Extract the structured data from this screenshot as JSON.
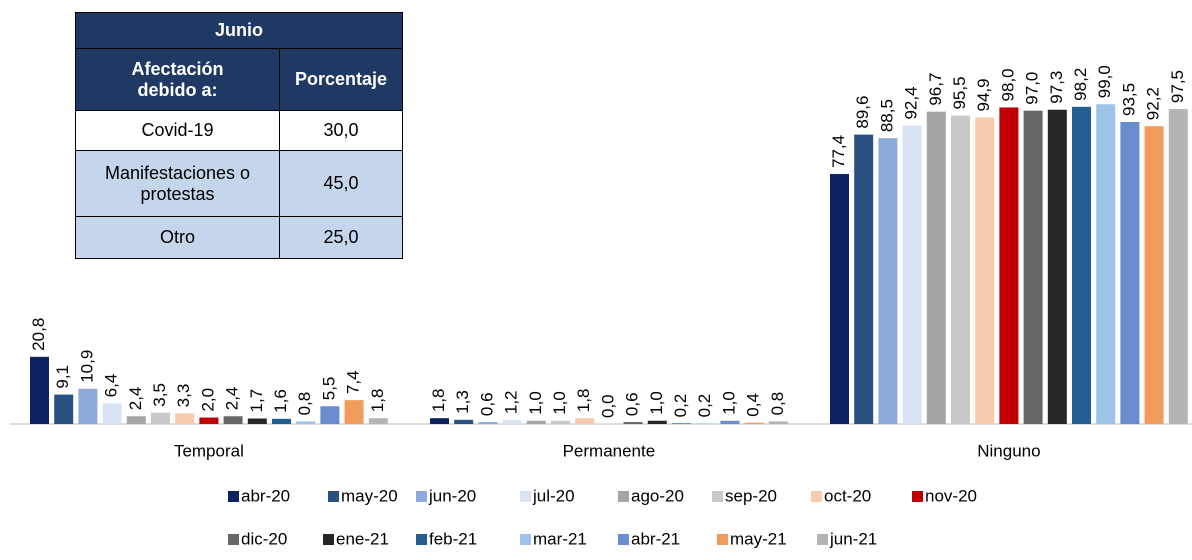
{
  "chart_data": {
    "type": "bar",
    "categories": [
      "Temporal",
      "Permanente",
      "Ninguno"
    ],
    "series": [
      {
        "name": "abr-20",
        "color": "#0d2260",
        "values": [
          20.8,
          1.8,
          77.4
        ],
        "value_labels": [
          "20,8",
          "1,8",
          "77,4"
        ]
      },
      {
        "name": "may-20",
        "color": "#2a5082",
        "values": [
          9.1,
          1.3,
          89.6
        ],
        "value_labels": [
          "9,1",
          "1,3",
          "89,6"
        ]
      },
      {
        "name": "jun-20",
        "color": "#8eaadb",
        "values": [
          10.9,
          0.6,
          88.5
        ],
        "value_labels": [
          "10,9",
          "0,6",
          "88,5"
        ]
      },
      {
        "name": "jul-20",
        "color": "#dae3f3",
        "values": [
          6.4,
          1.2,
          92.4
        ],
        "value_labels": [
          "6,4",
          "1,2",
          "92,4"
        ]
      },
      {
        "name": "ago-20",
        "color": "#a5a5a5",
        "values": [
          2.4,
          1.0,
          96.7
        ],
        "value_labels": [
          "2,4",
          "1,0",
          "96,7"
        ]
      },
      {
        "name": "sep-20",
        "color": "#c9c9c9",
        "values": [
          3.5,
          1.0,
          95.5
        ],
        "value_labels": [
          "3,5",
          "1,0",
          "95,5"
        ]
      },
      {
        "name": "oct-20",
        "color": "#f8cbad",
        "values": [
          3.3,
          1.8,
          94.9
        ],
        "value_labels": [
          "3,3",
          "1,8",
          "94,9"
        ]
      },
      {
        "name": "nov-20",
        "color": "#c00000",
        "values": [
          2.0,
          0.0,
          98.0
        ],
        "value_labels": [
          "2,0",
          "0,0",
          "98,0"
        ]
      },
      {
        "name": "dic-20",
        "color": "#666666",
        "values": [
          2.4,
          0.6,
          97.0
        ],
        "value_labels": [
          "2,4",
          "0,6",
          "97,0"
        ]
      },
      {
        "name": "ene-21",
        "color": "#262626",
        "values": [
          1.7,
          1.0,
          97.3
        ],
        "value_labels": [
          "1,7",
          "1,0",
          "97,3"
        ]
      },
      {
        "name": "feb-21",
        "color": "#255e91",
        "values": [
          1.6,
          0.2,
          98.2
        ],
        "value_labels": [
          "1,6",
          "0,2",
          "98,2"
        ]
      },
      {
        "name": "mar-21",
        "color": "#9dc3e6",
        "values": [
          0.8,
          0.2,
          99.0
        ],
        "value_labels": [
          "0,8",
          "0,2",
          "99,0"
        ]
      },
      {
        "name": "abr-21",
        "color": "#698ed0",
        "values": [
          5.5,
          1.0,
          93.5
        ],
        "value_labels": [
          "5,5",
          "1,0",
          "93,5"
        ]
      },
      {
        "name": "may-21",
        "color": "#f19c5c",
        "values": [
          7.4,
          0.4,
          92.2
        ],
        "value_labels": [
          "7,4",
          "0,4",
          "92,2"
        ]
      },
      {
        "name": "jun-21",
        "color": "#b4b4b4",
        "values": [
          1.8,
          0.8,
          97.5
        ],
        "value_labels": [
          "1,8",
          "0,8",
          "97,5"
        ]
      }
    ]
  },
  "table": {
    "title": "Junio",
    "headers": [
      "Afectación debido a:",
      "Porcentaje"
    ],
    "rows": [
      [
        "Covid-19",
        "30,0"
      ],
      [
        "Manifestaciones o protestas",
        "45,0"
      ],
      [
        "Otro",
        "25,0"
      ]
    ]
  }
}
